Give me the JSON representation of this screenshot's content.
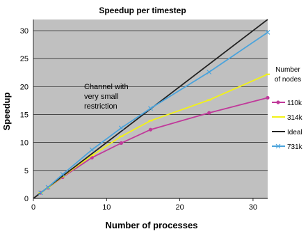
{
  "chart_data": {
    "type": "line",
    "title": "Speedup per timestep",
    "xlabel": "Number of processes",
    "ylabel": "Speedup",
    "xlim": [
      0,
      32
    ],
    "ylim": [
      0,
      32
    ],
    "x_ticks": [
      0,
      10,
      20,
      30
    ],
    "y_ticks": [
      0,
      5,
      10,
      15,
      20,
      25,
      30
    ],
    "grid": "horizontal",
    "plot_background": "#c0c0c0",
    "legend": {
      "title": "Number of nodes",
      "title_lines": [
        "Number",
        "of nodes"
      ],
      "position": "right"
    },
    "annotation": {
      "text": "Channel with very small restriction",
      "lines": [
        "Channel with",
        "very small",
        "restriction"
      ]
    },
    "series": [
      {
        "name": "110k",
        "color": "#c0399a",
        "marker": "circle",
        "points": [
          [
            1,
            1
          ],
          [
            2,
            1.9
          ],
          [
            4,
            3.8
          ],
          [
            8,
            7.3
          ],
          [
            12,
            9.9
          ],
          [
            16,
            12.3
          ],
          [
            24,
            15.3
          ],
          [
            32,
            18
          ]
        ]
      },
      {
        "name": "314k",
        "color": "#f2f216",
        "marker": "dash",
        "points": [
          [
            1,
            1
          ],
          [
            2,
            1.9
          ],
          [
            4,
            3.9
          ],
          [
            8,
            7.7
          ],
          [
            12,
            11.1
          ],
          [
            16,
            13.9
          ],
          [
            24,
            17.6
          ],
          [
            32,
            22.2
          ]
        ]
      },
      {
        "name": "Ideal",
        "color": "#222222",
        "marker": "none",
        "points": [
          [
            0,
            0
          ],
          [
            32,
            32
          ]
        ]
      },
      {
        "name": "731k",
        "color": "#4aa3dc",
        "marker": "cross",
        "points": [
          [
            1,
            1
          ],
          [
            2,
            2
          ],
          [
            4,
            4.3
          ],
          [
            8,
            8.7
          ],
          [
            12,
            12.6
          ],
          [
            16,
            16.1
          ],
          [
            24,
            22.6
          ],
          [
            32,
            29.7
          ]
        ]
      }
    ]
  }
}
